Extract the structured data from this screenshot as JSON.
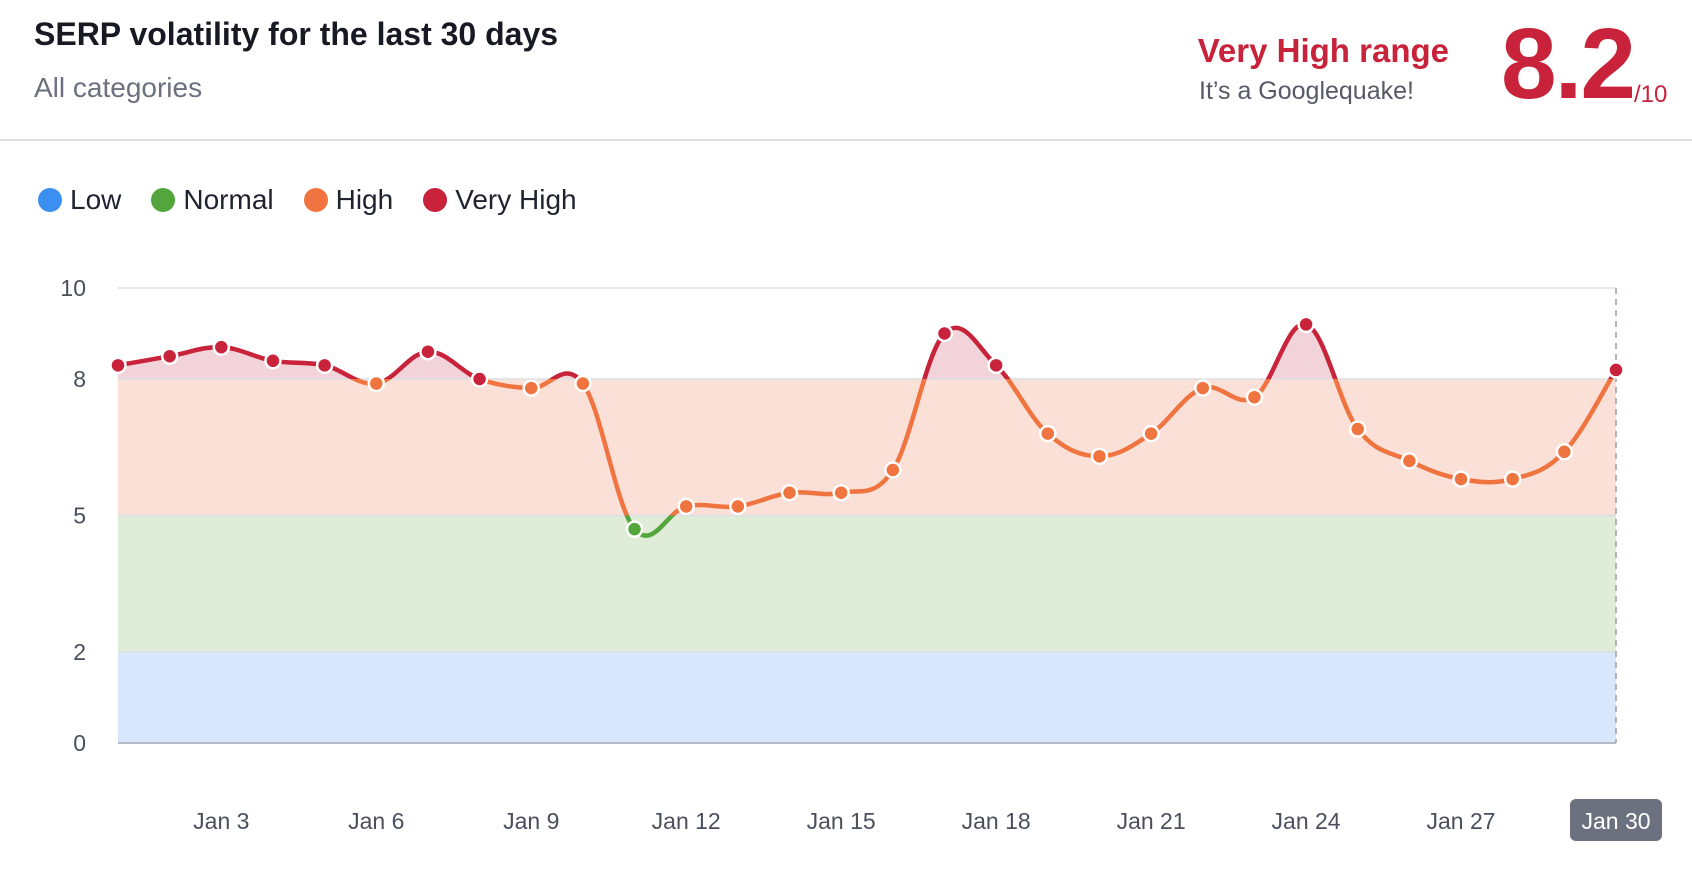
{
  "header": {
    "title": "SERP volatility for the last 30 days",
    "subtitle": "All categories",
    "range_label": "Very High range",
    "range_description": "It’s a Googlequake!",
    "score": "8.2",
    "score_max": "/10"
  },
  "legend": [
    {
      "label": "Low",
      "color": "#3b8ff0"
    },
    {
      "label": "Normal",
      "color": "#53a63b"
    },
    {
      "label": "High",
      "color": "#ef7440"
    },
    {
      "label": "Very High",
      "color": "#c8233a"
    }
  ],
  "chart_data": {
    "type": "line",
    "x": [
      "Jan 1",
      "Jan 2",
      "Jan 3",
      "Jan 4",
      "Jan 5",
      "Jan 6",
      "Jan 7",
      "Jan 8",
      "Jan 9",
      "Jan 10",
      "Jan 11",
      "Jan 12",
      "Jan 13",
      "Jan 14",
      "Jan 15",
      "Jan 16",
      "Jan 17",
      "Jan 18",
      "Jan 19",
      "Jan 20",
      "Jan 21",
      "Jan 22",
      "Jan 23",
      "Jan 24",
      "Jan 25",
      "Jan 26",
      "Jan 27",
      "Jan 28",
      "Jan 29",
      "Jan 30"
    ],
    "series": [
      {
        "values": [
          8.3,
          8.5,
          8.7,
          8.4,
          8.3,
          7.9,
          8.6,
          8.0,
          7.8,
          7.9,
          4.7,
          5.2,
          5.2,
          5.5,
          5.5,
          6.0,
          9.0,
          8.3,
          6.8,
          6.3,
          6.8,
          7.8,
          7.6,
          9.2,
          6.9,
          6.2,
          5.8,
          5.8,
          6.4,
          8.2
        ]
      }
    ],
    "x_tick_labels": [
      "Jan 3",
      "Jan 6",
      "Jan 9",
      "Jan 12",
      "Jan 15",
      "Jan 18",
      "Jan 21",
      "Jan 24",
      "Jan 27",
      "Jan 30"
    ],
    "highlighted_x": "Jan 30",
    "y_ticks": [
      0,
      2,
      5,
      8,
      10
    ],
    "ylim": [
      0,
      10
    ],
    "bands": [
      {
        "name": "Low",
        "from": 0,
        "to": 2,
        "fill": "#d9e7fd"
      },
      {
        "name": "Normal",
        "from": 2,
        "to": 5,
        "fill": "#deecd8"
      },
      {
        "name": "High",
        "from": 5,
        "to": 8,
        "fill": "#fbe0d8"
      },
      {
        "name": "Very High",
        "from": 8,
        "to": 10,
        "fill": "#f2d3d9"
      }
    ],
    "grid": true,
    "legend_position": "top-left"
  }
}
